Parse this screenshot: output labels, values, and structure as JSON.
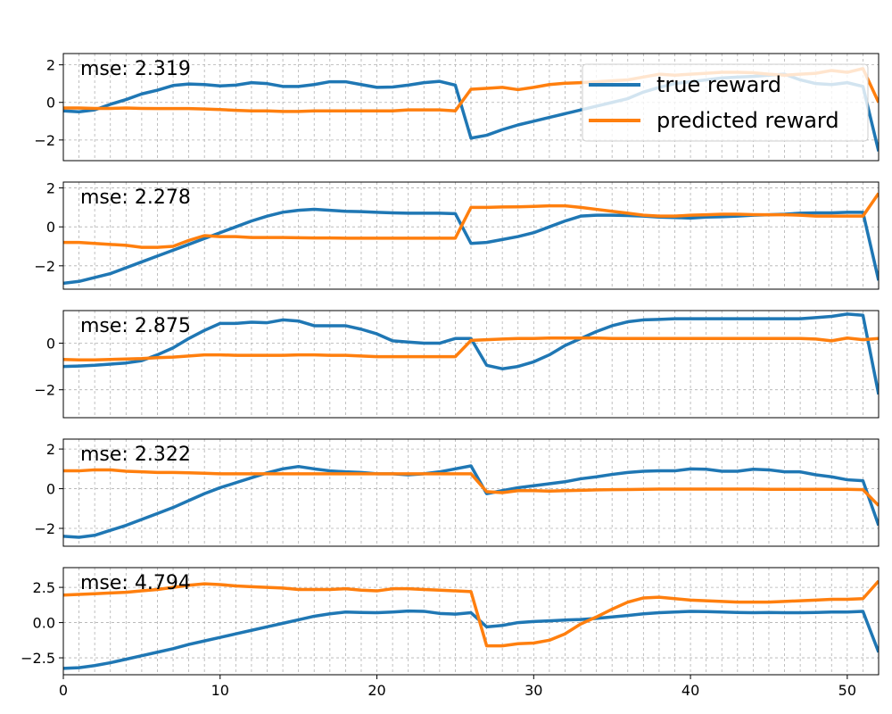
{
  "chart_data": [
    {
      "type": "line",
      "mse_text": "mse: 2.319",
      "ylim": [
        -3.1,
        2.6
      ],
      "yticks": [
        -2,
        0,
        2
      ],
      "yticklabels": [
        "−2",
        "0",
        "2"
      ],
      "series": [
        {
          "name": "true reward",
          "color": "#1f77b4",
          "values": [
            -0.45,
            -0.5,
            -0.4,
            -0.1,
            0.15,
            0.45,
            0.65,
            0.9,
            0.98,
            0.95,
            0.88,
            0.92,
            1.05,
            1.0,
            0.85,
            0.85,
            0.95,
            1.1,
            1.1,
            0.95,
            0.8,
            0.82,
            0.92,
            1.05,
            1.12,
            0.92,
            -1.9,
            -1.75,
            -1.45,
            -1.2,
            -1.0,
            -0.8,
            -0.6,
            -0.4,
            -0.2,
            0.0,
            0.2,
            0.55,
            0.8,
            1.0,
            1.1,
            1.2,
            1.3,
            1.35,
            1.38,
            1.45,
            1.5,
            1.2,
            1.0,
            0.95,
            1.05,
            0.85,
            -2.6
          ]
        },
        {
          "name": "predicted reward",
          "color": "#ff7f0e",
          "values": [
            -0.3,
            -0.3,
            -0.32,
            -0.32,
            -0.3,
            -0.32,
            -0.33,
            -0.33,
            -0.33,
            -0.35,
            -0.38,
            -0.42,
            -0.45,
            -0.45,
            -0.48,
            -0.48,
            -0.45,
            -0.45,
            -0.45,
            -0.45,
            -0.45,
            -0.45,
            -0.4,
            -0.4,
            -0.4,
            -0.45,
            0.7,
            0.75,
            0.8,
            0.68,
            0.8,
            0.95,
            1.02,
            1.05,
            1.1,
            1.15,
            1.2,
            1.35,
            1.5,
            1.45,
            1.5,
            1.55,
            1.6,
            1.6,
            1.58,
            1.5,
            1.45,
            1.5,
            1.55,
            1.7,
            1.6,
            1.8,
            0.0
          ]
        }
      ]
    },
    {
      "type": "line",
      "mse_text": "mse: 2.278",
      "ylim": [
        -3.2,
        2.3
      ],
      "yticks": [
        -2,
        0,
        2
      ],
      "yticklabels": [
        "−2",
        "0",
        "2"
      ],
      "series": [
        {
          "name": "true reward",
          "color": "#1f77b4",
          "values": [
            -2.9,
            -2.8,
            -2.6,
            -2.4,
            -2.1,
            -1.8,
            -1.5,
            -1.2,
            -0.9,
            -0.6,
            -0.3,
            0.0,
            0.3,
            0.55,
            0.75,
            0.85,
            0.9,
            0.85,
            0.8,
            0.78,
            0.75,
            0.72,
            0.7,
            0.7,
            0.7,
            0.68,
            -0.85,
            -0.8,
            -0.65,
            -0.5,
            -0.3,
            0.0,
            0.3,
            0.55,
            0.6,
            0.6,
            0.58,
            0.55,
            0.5,
            0.48,
            0.45,
            0.5,
            0.52,
            0.55,
            0.6,
            0.62,
            0.65,
            0.7,
            0.72,
            0.72,
            0.75,
            0.75,
            -2.75
          ]
        },
        {
          "name": "predicted reward",
          "color": "#ff7f0e",
          "values": [
            -0.8,
            -0.8,
            -0.85,
            -0.9,
            -0.95,
            -1.05,
            -1.05,
            -1.0,
            -0.7,
            -0.45,
            -0.5,
            -0.5,
            -0.55,
            -0.55,
            -0.55,
            -0.56,
            -0.57,
            -0.57,
            -0.58,
            -0.58,
            -0.58,
            -0.58,
            -0.58,
            -0.58,
            -0.58,
            -0.58,
            1.0,
            1.0,
            1.02,
            1.03,
            1.05,
            1.08,
            1.08,
            1.0,
            0.9,
            0.8,
            0.7,
            0.6,
            0.55,
            0.55,
            0.6,
            0.62,
            0.65,
            0.65,
            0.63,
            0.62,
            0.62,
            0.6,
            0.55,
            0.55,
            0.55,
            0.55,
            1.72
          ]
        }
      ]
    },
    {
      "type": "line",
      "mse_text": "mse: 2.875",
      "ylim": [
        -3.2,
        1.4
      ],
      "yticks": [
        -2,
        0
      ],
      "yticklabels": [
        "−2",
        "0"
      ],
      "series": [
        {
          "name": "true reward",
          "color": "#1f77b4",
          "values": [
            -1.0,
            -0.98,
            -0.95,
            -0.9,
            -0.85,
            -0.75,
            -0.5,
            -0.2,
            0.2,
            0.55,
            0.85,
            0.85,
            0.9,
            0.88,
            1.0,
            0.95,
            0.75,
            0.75,
            0.75,
            0.6,
            0.4,
            0.1,
            0.05,
            0.0,
            0.0,
            0.2,
            0.2,
            -0.95,
            -1.1,
            -1.0,
            -0.8,
            -0.5,
            -0.1,
            0.2,
            0.5,
            0.75,
            0.92,
            1.0,
            1.02,
            1.05,
            1.05,
            1.05,
            1.05,
            1.05,
            1.05,
            1.05,
            1.05,
            1.05,
            1.1,
            1.15,
            1.25,
            1.2,
            -2.2
          ]
        },
        {
          "name": "predicted reward",
          "color": "#ff7f0e",
          "values": [
            -0.7,
            -0.72,
            -0.72,
            -0.7,
            -0.68,
            -0.66,
            -0.62,
            -0.6,
            -0.55,
            -0.5,
            -0.5,
            -0.52,
            -0.52,
            -0.52,
            -0.52,
            -0.5,
            -0.5,
            -0.52,
            -0.52,
            -0.55,
            -0.58,
            -0.58,
            -0.58,
            -0.58,
            -0.58,
            -0.58,
            0.12,
            0.15,
            0.18,
            0.2,
            0.2,
            0.22,
            0.22,
            0.22,
            0.22,
            0.2,
            0.2,
            0.2,
            0.2,
            0.2,
            0.2,
            0.2,
            0.2,
            0.2,
            0.2,
            0.2,
            0.2,
            0.2,
            0.18,
            0.1,
            0.22,
            0.15,
            0.2
          ]
        }
      ]
    },
    {
      "type": "line",
      "mse_text": "mse: 2.322",
      "ylim": [
        -2.9,
        2.5
      ],
      "yticks": [
        -2,
        0,
        2
      ],
      "yticklabels": [
        "−2",
        "0",
        "2"
      ],
      "series": [
        {
          "name": "true reward",
          "color": "#1f77b4",
          "values": [
            -2.4,
            -2.45,
            -2.35,
            -2.1,
            -1.85,
            -1.55,
            -1.25,
            -0.95,
            -0.6,
            -0.25,
            0.05,
            0.3,
            0.55,
            0.8,
            1.0,
            1.12,
            1.0,
            0.9,
            0.85,
            0.82,
            0.75,
            0.75,
            0.7,
            0.75,
            0.85,
            1.0,
            1.15,
            -0.25,
            -0.1,
            0.05,
            0.15,
            0.25,
            0.35,
            0.5,
            0.6,
            0.72,
            0.82,
            0.88,
            0.9,
            0.9,
            1.0,
            0.98,
            0.88,
            0.88,
            0.98,
            0.95,
            0.85,
            0.85,
            0.7,
            0.6,
            0.45,
            0.4,
            -1.85
          ]
        },
        {
          "name": "predicted reward",
          "color": "#ff7f0e",
          "values": [
            0.9,
            0.9,
            0.95,
            0.95,
            0.88,
            0.85,
            0.82,
            0.82,
            0.8,
            0.78,
            0.75,
            0.75,
            0.75,
            0.75,
            0.75,
            0.75,
            0.75,
            0.75,
            0.75,
            0.75,
            0.75,
            0.75,
            0.75,
            0.75,
            0.75,
            0.75,
            0.75,
            -0.15,
            -0.2,
            -0.1,
            -0.1,
            -0.12,
            -0.1,
            -0.08,
            -0.06,
            -0.05,
            -0.04,
            -0.03,
            -0.02,
            -0.02,
            -0.02,
            -0.02,
            -0.02,
            -0.02,
            -0.02,
            -0.03,
            -0.03,
            -0.03,
            -0.03,
            -0.03,
            -0.03,
            -0.05,
            -0.85
          ]
        }
      ]
    },
    {
      "type": "line",
      "mse_text": "mse: 4.794",
      "ylim": [
        -3.7,
        3.9
      ],
      "yticks": [
        -2.5,
        0,
        2.5
      ],
      "yticklabels": [
        "−2.5",
        "0.0",
        "2.5"
      ],
      "series": [
        {
          "name": "true reward",
          "color": "#1f77b4",
          "values": [
            -3.25,
            -3.2,
            -3.05,
            -2.85,
            -2.6,
            -2.35,
            -2.1,
            -1.85,
            -1.55,
            -1.3,
            -1.05,
            -0.8,
            -0.55,
            -0.3,
            -0.05,
            0.2,
            0.45,
            0.62,
            0.75,
            0.72,
            0.7,
            0.75,
            0.82,
            0.8,
            0.65,
            0.6,
            0.7,
            -0.3,
            -0.2,
            0.0,
            0.08,
            0.12,
            0.18,
            0.22,
            0.3,
            0.4,
            0.5,
            0.62,
            0.7,
            0.75,
            0.8,
            0.78,
            0.75,
            0.72,
            0.7,
            0.72,
            0.7,
            0.7,
            0.72,
            0.75,
            0.75,
            0.8,
            -2.1
          ]
        },
        {
          "name": "predicted reward",
          "color": "#ff7f0e",
          "values": [
            1.95,
            2.0,
            2.05,
            2.1,
            2.15,
            2.25,
            2.35,
            2.5,
            2.65,
            2.75,
            2.7,
            2.6,
            2.55,
            2.5,
            2.45,
            2.35,
            2.35,
            2.35,
            2.4,
            2.3,
            2.25,
            2.4,
            2.4,
            2.35,
            2.3,
            2.25,
            2.2,
            -1.65,
            -1.65,
            -1.5,
            -1.45,
            -1.25,
            -0.8,
            -0.1,
            0.4,
            0.95,
            1.45,
            1.75,
            1.8,
            1.7,
            1.6,
            1.55,
            1.5,
            1.45,
            1.45,
            1.45,
            1.5,
            1.55,
            1.6,
            1.65,
            1.65,
            1.7,
            2.95
          ]
        }
      ]
    }
  ],
  "xaxis": {
    "xlim": [
      0,
      52
    ],
    "ticks": [
      0,
      10,
      20,
      30,
      40,
      50
    ],
    "ticklabels": [
      "0",
      "10",
      "20",
      "30",
      "40",
      "50"
    ]
  },
  "legend": {
    "placement": "top-right",
    "entries": [
      {
        "name": "true reward",
        "color": "#1f77b4"
      },
      {
        "name": "predicted reward",
        "color": "#ff7f0e"
      }
    ]
  },
  "grid": true
}
